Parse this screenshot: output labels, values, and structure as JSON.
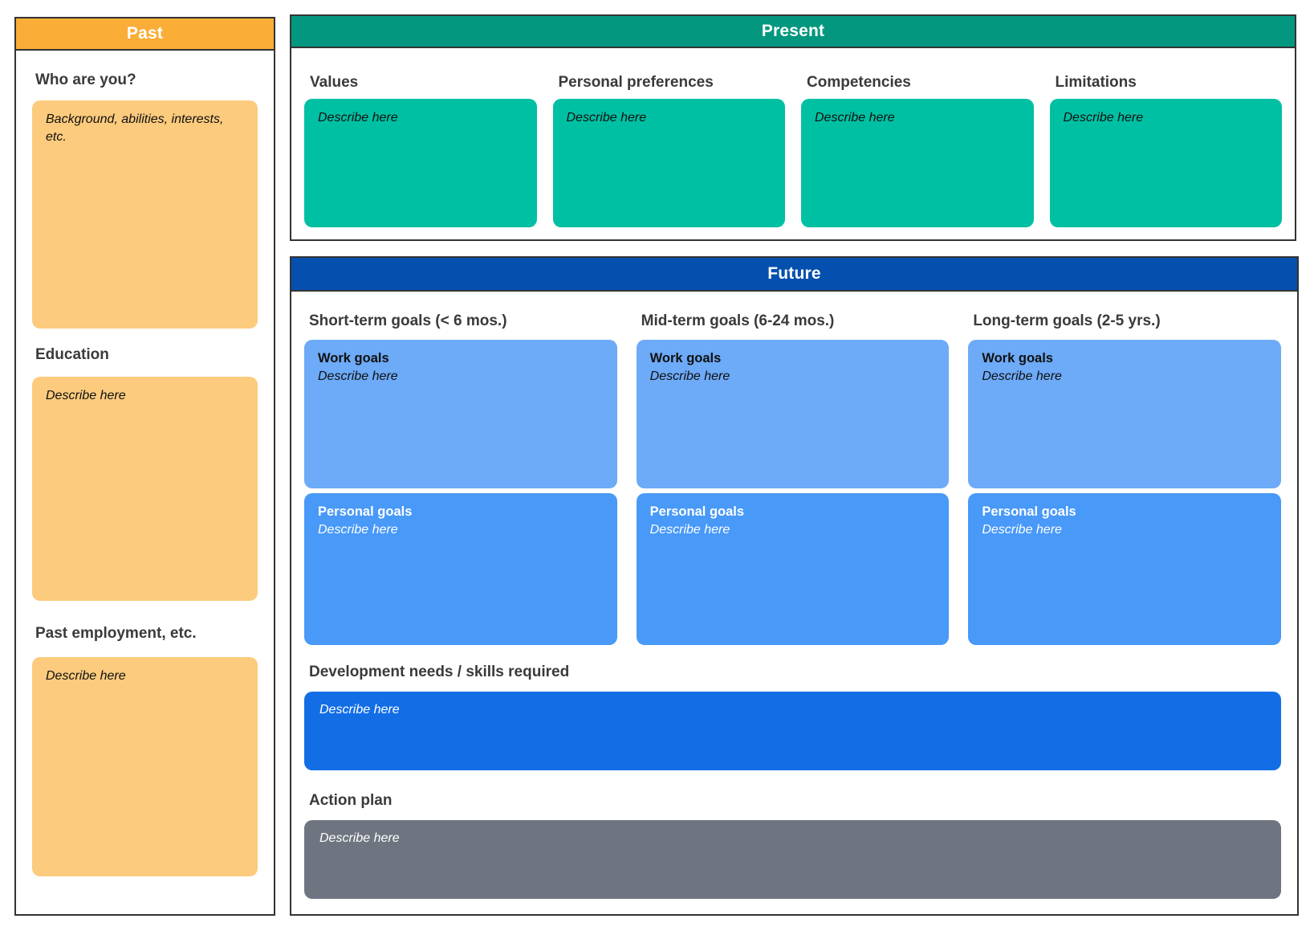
{
  "palette": {
    "past_header": "#FAAE38",
    "past_note": "#FCCB7D",
    "present_header": "#04977F",
    "present_note": "#00C0A3",
    "future_header": "#0550AE",
    "work_goals_card": "#6DAAF7",
    "personal_goals_card": "#4899F8",
    "development_card": "#136EE6",
    "action_plan_card": "#6E7580",
    "heading_text": "#3A3A3A",
    "panel_border": "#333333"
  },
  "past": {
    "title": "Past",
    "sections": [
      {
        "heading": "Who are you?",
        "placeholder": "Background, abilities, interests, etc."
      },
      {
        "heading": "Education",
        "placeholder": "Describe here"
      },
      {
        "heading": "Past employment, etc.",
        "placeholder": "Describe here"
      }
    ]
  },
  "present": {
    "title": "Present",
    "sections": [
      {
        "heading": "Values",
        "placeholder": "Describe here"
      },
      {
        "heading": "Personal preferences",
        "placeholder": "Describe here"
      },
      {
        "heading": "Competencies",
        "placeholder": "Describe here"
      },
      {
        "heading": "Limitations",
        "placeholder": "Describe here"
      }
    ]
  },
  "future": {
    "title": "Future",
    "columns": [
      {
        "heading": "Short-term goals (< 6 mos.)",
        "work_label": "Work goals",
        "work_placeholder": "Describe here",
        "personal_label": "Personal goals",
        "personal_placeholder": "Describe here"
      },
      {
        "heading": "Mid-term goals (6-24 mos.)",
        "work_label": "Work goals",
        "work_placeholder": "Describe here",
        "personal_label": "Personal goals",
        "personal_placeholder": "Describe here"
      },
      {
        "heading": "Long-term goals (2-5 yrs.)",
        "work_label": "Work goals",
        "work_placeholder": "Describe here",
        "personal_label": "Personal goals",
        "personal_placeholder": "Describe here"
      }
    ],
    "development": {
      "heading": "Development needs / skills required",
      "placeholder": "Describe here"
    },
    "action_plan": {
      "heading": "Action plan",
      "placeholder": "Describe here"
    }
  }
}
